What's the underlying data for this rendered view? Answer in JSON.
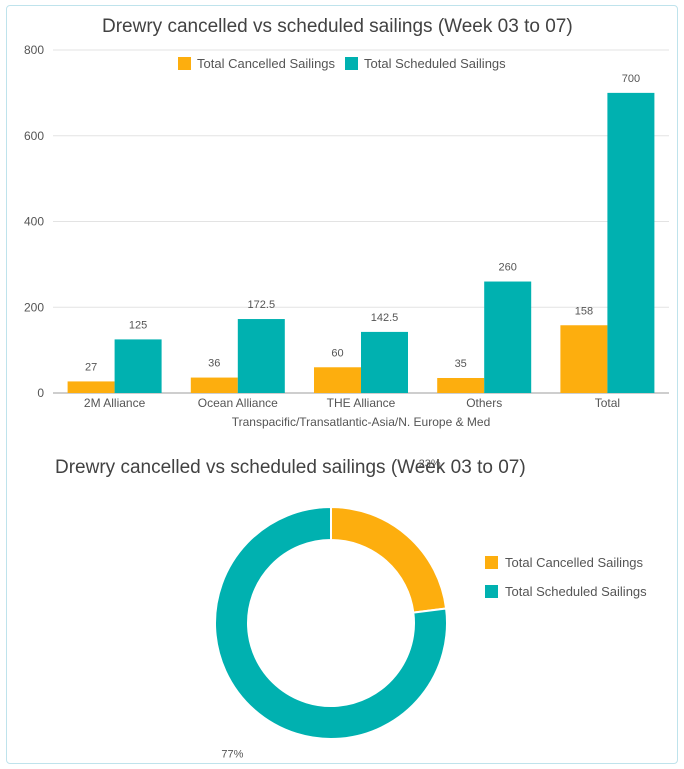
{
  "chart_data": [
    {
      "type": "bar",
      "title": "Drewry cancelled vs scheduled sailings (Week 03 to 07)",
      "xlabel": "Transpacific/Transatlantic-Asia/N. Europe & Med",
      "ylabel": "",
      "ylim": [
        0,
        800
      ],
      "yticks": [
        "0",
        "200",
        "400",
        "600",
        "800"
      ],
      "grid": true,
      "legend": "top-center",
      "categories": [
        "2M Alliance",
        "Ocean Alliance",
        "THE Alliance",
        "Others",
        "Total"
      ],
      "series": [
        {
          "name": "Total Cancelled Sailings",
          "color": "#FDAE0E",
          "values": [
            27,
            36,
            60,
            35,
            158
          ],
          "labels": [
            "27",
            "36",
            "60",
            "35",
            "158"
          ]
        },
        {
          "name": "Total Scheduled Sailings",
          "color": "#00B1B0",
          "values": [
            125,
            172.5,
            142.5,
            260,
            700
          ],
          "labels": [
            "125",
            "172.5",
            "142.5",
            "260",
            "700"
          ]
        }
      ]
    },
    {
      "type": "pie",
      "title": "Drewry cancelled vs scheduled sailings (Week 03 to 07)",
      "donut": true,
      "legend": "right",
      "slices": [
        {
          "name": "Total Cancelled Sailings",
          "value": 23,
          "label": "23%",
          "color": "#FDAE0E"
        },
        {
          "name": "Total Scheduled Sailings",
          "value": 77,
          "label": "77%",
          "color": "#00B1B0"
        }
      ]
    }
  ]
}
